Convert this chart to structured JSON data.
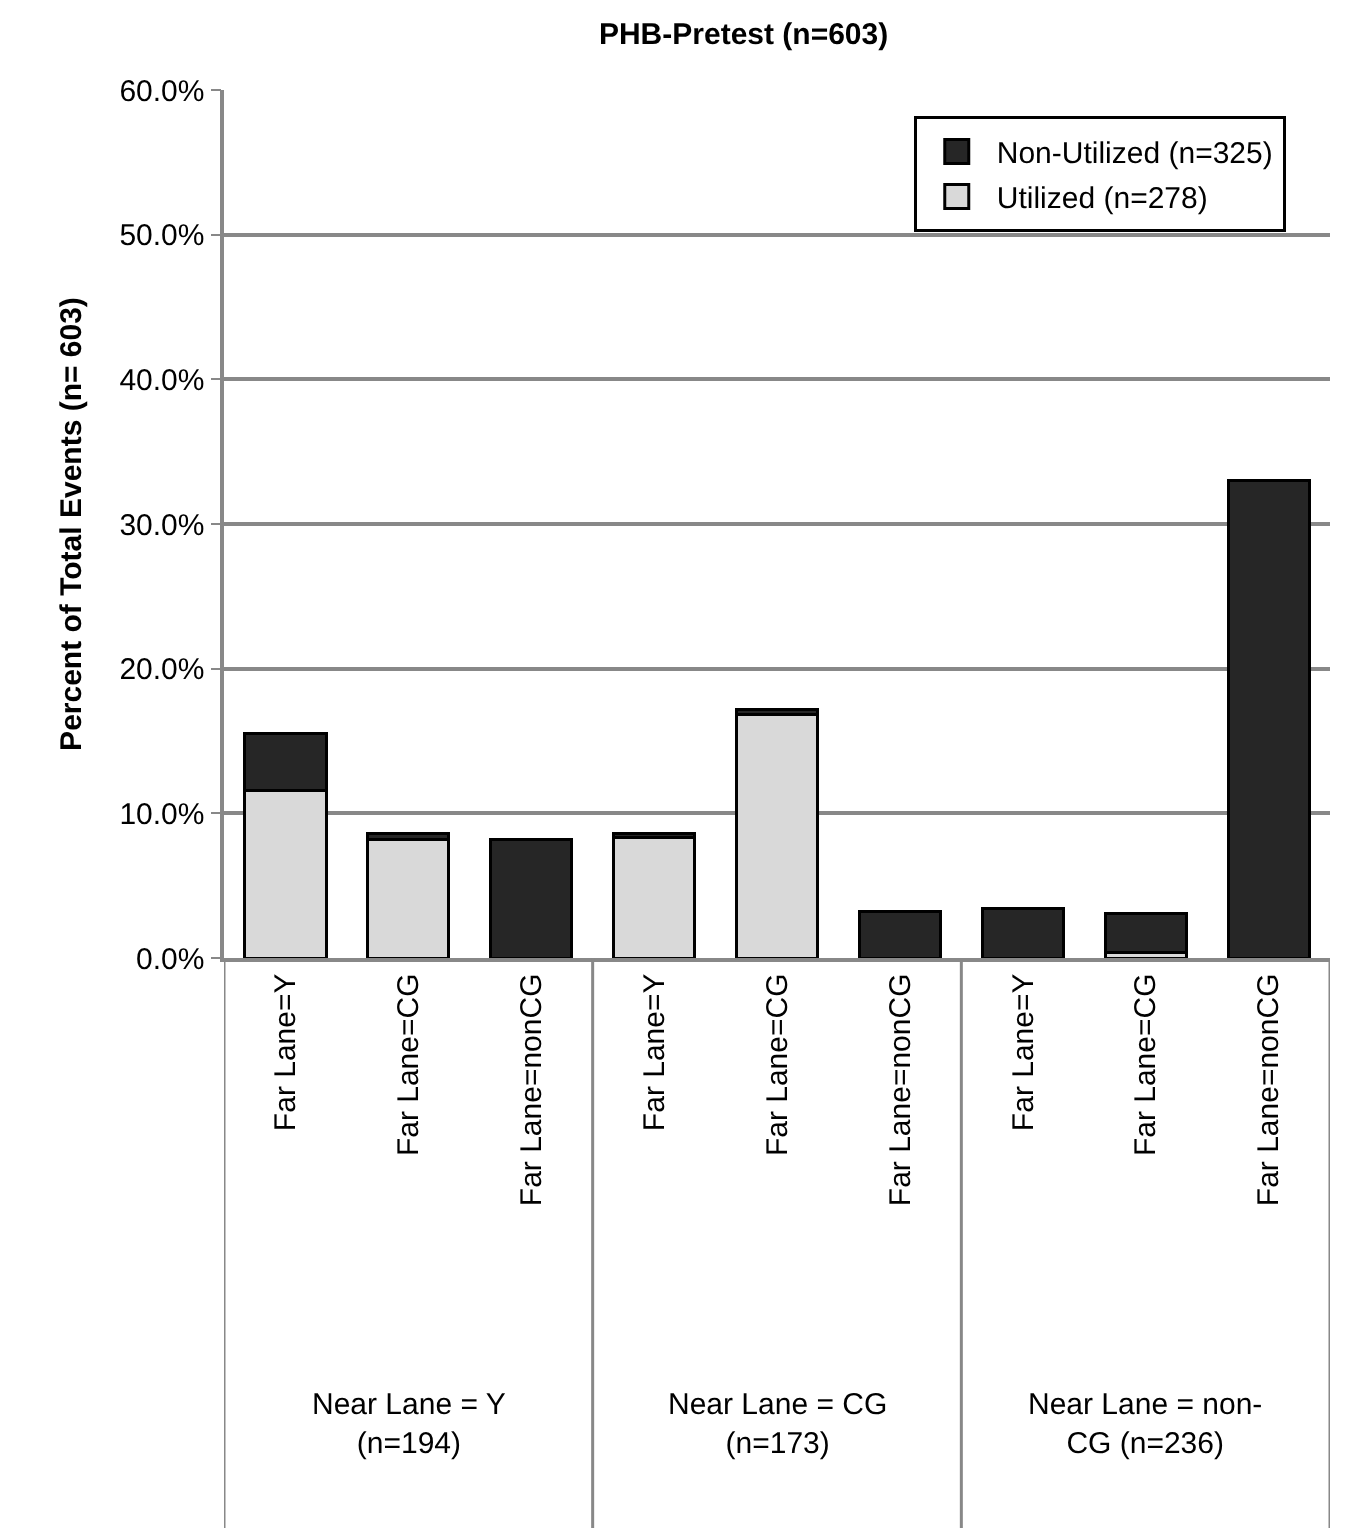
{
  "chart_data": {
    "type": "bar",
    "title": "PHB-Pretest (n=603)",
    "ylabel": "Percent of Total Events (n= 603)",
    "categories": [
      "Far Lane=Y",
      "Far Lane=CG",
      "Far Lane=nonCG",
      "Far Lane=Y",
      "Far Lane=CG",
      "Far Lane=nonCG",
      "Far Lane=Y",
      "Far Lane=CG",
      "Far Lane=nonCG"
    ],
    "stacked": true,
    "series": [
      {
        "name": "Utilized (n=278)",
        "color": "#d9d9d9",
        "values": [
          11.6,
          8.2,
          0,
          8.3,
          16.8,
          0,
          0,
          0.4,
          0
        ]
      },
      {
        "name": "Non-Utilized (n=325)",
        "color": "#262626",
        "values": [
          3.9,
          0.4,
          8.2,
          0.3,
          0.4,
          3.2,
          3.4,
          2.7,
          33.0
        ]
      }
    ],
    "ylim": [
      0,
      60
    ],
    "yticks": [
      {
        "value": 0,
        "label": "0.0%"
      },
      {
        "value": 10,
        "label": "10.0%"
      },
      {
        "value": 20,
        "label": "20.0%"
      },
      {
        "value": 30,
        "label": "30.0%"
      },
      {
        "value": 40,
        "label": "40.0%"
      },
      {
        "value": 50,
        "label": "50.0%"
      },
      {
        "value": 60,
        "label": "60.0%"
      }
    ],
    "grid": "y",
    "legend": "top right",
    "annotations": [
      "Near Lane = Y (n=194)",
      "Near Lane = CG (n=173)",
      "Near Lane = non-CG (n=236)"
    ]
  }
}
